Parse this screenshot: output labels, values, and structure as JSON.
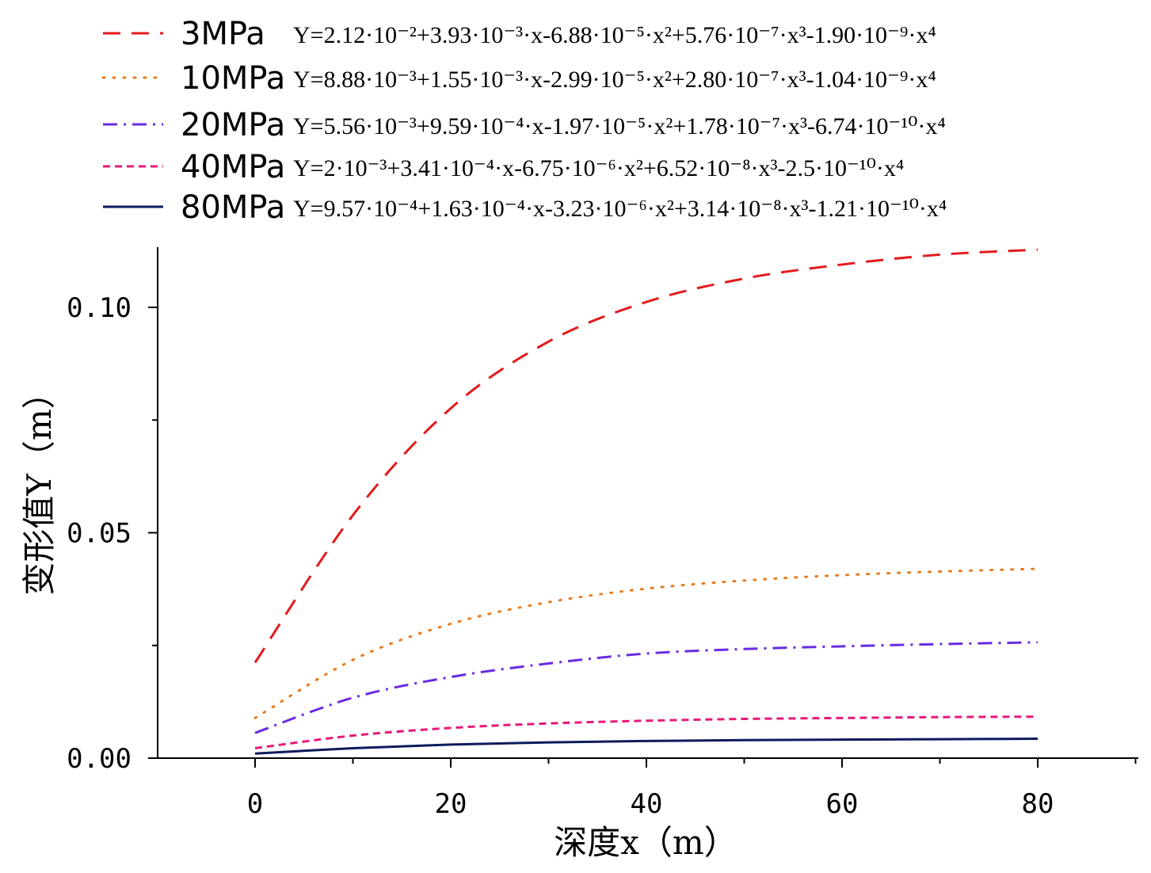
{
  "chart_data": {
    "type": "line",
    "title": "",
    "xlabel": "深度x（m）",
    "ylabel": "变形值Y（m）",
    "xlim": [
      -10,
      90
    ],
    "ylim": [
      0,
      0.113
    ],
    "x_ticks": [
      0,
      20,
      40,
      60,
      80
    ],
    "x_tick_labels": [
      "0",
      "20",
      "40",
      "60",
      "80"
    ],
    "y_ticks": [
      0.0,
      0.05,
      0.1
    ],
    "y_tick_labels": [
      "0.00",
      "0.05",
      "0.10"
    ],
    "grid": false,
    "legend_position": "top",
    "x": [
      0,
      10,
      20,
      30,
      40,
      50,
      60,
      70,
      80
    ],
    "series": [
      {
        "name": "3MPa",
        "equation": "Y=2.12·10⁻²+3.93·10⁻³·x-6.88·10⁻⁵·x²+5.76·10⁻⁷·x³-1.90·10⁻⁹·x⁴",
        "values": [
          0.0212,
          0.0539,
          0.0776,
          0.0924,
          0.1012,
          0.1064,
          0.1095,
          0.1117,
          0.1128
        ],
        "color": "#e31a1c",
        "dash": "dash"
      },
      {
        "name": "10MPa",
        "equation": "Y=8.88·10⁻³+1.55·10⁻³·x-2.99·10⁻⁵·x²+2.80·10⁻⁷·x³-1.04·10⁻⁹·x⁴",
        "values": [
          0.0089,
          0.0218,
          0.0298,
          0.0346,
          0.0376,
          0.0394,
          0.0406,
          0.0414,
          0.042
        ],
        "color": "#e87a1e",
        "dash": "dot"
      },
      {
        "name": "20MPa",
        "equation": "Y=5.56·10⁻³+9.59·10⁻⁴·x-1.97·10⁻⁵·x²+1.78·10⁻⁷·x³-6.74·10⁻¹⁰·x⁴",
        "values": [
          0.0056,
          0.0134,
          0.018,
          0.021,
          0.0232,
          0.0242,
          0.0248,
          0.0253,
          0.0257
        ],
        "color": "#6a2be2",
        "dash": "dashdot"
      },
      {
        "name": "40MPa",
        "equation": "Y=2·10⁻³+3.41·10⁻⁴·x-6.75·10⁻⁶·x²+6.52·10⁻⁸·x³-2.5·10⁻¹⁰·x⁴",
        "values": [
          0.0022,
          0.005,
          0.0067,
          0.0077,
          0.0083,
          0.0087,
          0.0089,
          0.0091,
          0.0092
        ],
        "color": "#e6197a",
        "dash": "shortdash"
      },
      {
        "name": "80MPa",
        "equation": "Y=9.57·10⁻⁴+1.63·10⁻⁴·x-3.23·10⁻⁶·x²+3.14·10⁻⁸·x³-1.21·10⁻¹⁰·x⁴",
        "values": [
          0.001,
          0.0022,
          0.003,
          0.0035,
          0.0038,
          0.004,
          0.0041,
          0.0042,
          0.0043
        ],
        "color": "#0d1a5c",
        "dash": "solid"
      }
    ]
  }
}
